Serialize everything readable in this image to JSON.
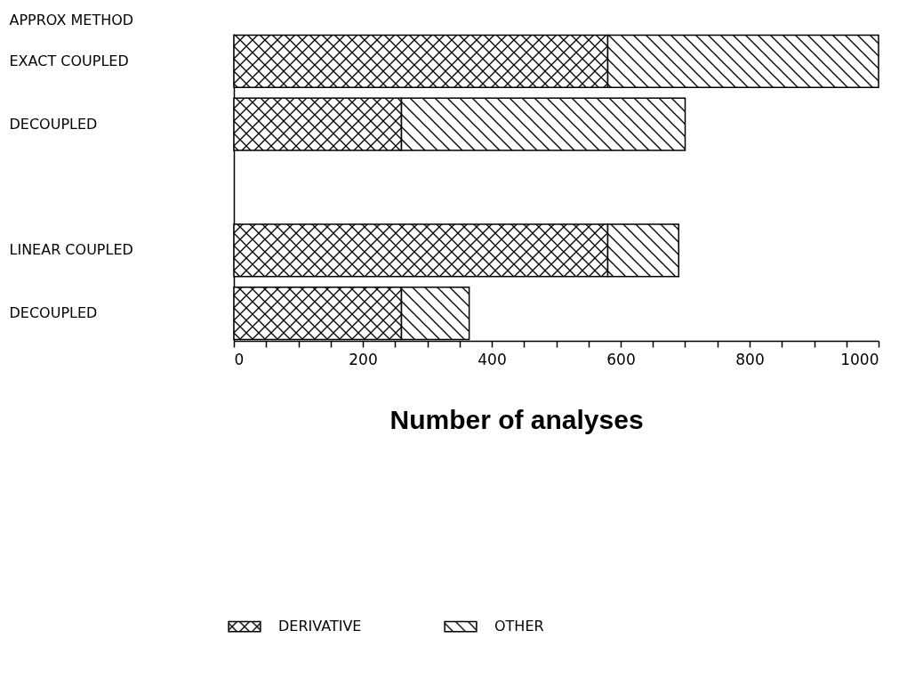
{
  "chart_data": {
    "type": "bar",
    "orientation": "horizontal",
    "stacked": true,
    "categories": [
      "EXACT COUPLED",
      "DECOUPLED",
      null,
      "LINEAR COUPLED",
      "DECOUPLED"
    ],
    "series": [
      {
        "name": "DERIVATIVE",
        "color": "#000000",
        "values": [
          580,
          260,
          null,
          580,
          260
        ]
      },
      {
        "name": "OTHER",
        "color": "#000000",
        "values": [
          420,
          440,
          null,
          110,
          105
        ]
      }
    ],
    "xlabel": "Number of analyses",
    "ylabel": "APPROX METHOD",
    "xlim": [
      0,
      1000
    ],
    "xticks": [
      0,
      {
        "value": 50,
        "label": null
      },
      {
        "value": 100,
        "label": null
      },
      {
        "value": 150,
        "label": null
      },
      200,
      {
        "value": 250,
        "label": null
      },
      {
        "value": 300,
        "label": null
      },
      {
        "value": 350,
        "label": null
      },
      400,
      {
        "value": 450,
        "label": null
      },
      {
        "value": 500,
        "label": null
      },
      {
        "value": 550,
        "label": null
      },
      600,
      {
        "value": 650,
        "label": null
      },
      {
        "value": 700,
        "label": null
      },
      {
        "value": 750,
        "label": null
      },
      800,
      {
        "value": 850,
        "label": null
      },
      {
        "value": 900,
        "label": null
      },
      {
        "value": 950,
        "label": null
      },
      1000
    ],
    "legend": "bottom",
    "grid": false
  }
}
